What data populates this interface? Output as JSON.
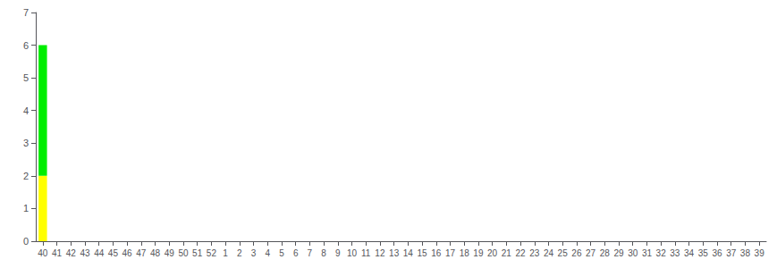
{
  "chart_data": {
    "type": "bar",
    "stacked": true,
    "categories": [
      "40",
      "41",
      "42",
      "43",
      "44",
      "45",
      "46",
      "47",
      "48",
      "49",
      "50",
      "51",
      "52",
      "1",
      "2",
      "3",
      "4",
      "5",
      "6",
      "7",
      "8",
      "9",
      "10",
      "11",
      "12",
      "13",
      "14",
      "15",
      "16",
      "17",
      "18",
      "19",
      "20",
      "21",
      "22",
      "23",
      "24",
      "25",
      "26",
      "27",
      "28",
      "29",
      "30",
      "31",
      "32",
      "33",
      "34",
      "35",
      "36",
      "37",
      "38",
      "39"
    ],
    "series": [
      {
        "color": "#ffff00",
        "values": [
          2,
          0,
          0,
          0,
          0,
          0,
          0,
          0,
          0,
          0,
          0,
          0,
          0,
          0,
          0,
          0,
          0,
          0,
          0,
          0,
          0,
          0,
          0,
          0,
          0,
          0,
          0,
          0,
          0,
          0,
          0,
          0,
          0,
          0,
          0,
          0,
          0,
          0,
          0,
          0,
          0,
          0,
          0,
          0,
          0,
          0,
          0,
          0,
          0,
          0,
          0,
          0
        ]
      },
      {
        "color": "#00ee00",
        "values": [
          4,
          0,
          0,
          0,
          0,
          0,
          0,
          0,
          0,
          0,
          0,
          0,
          0,
          0,
          0,
          0,
          0,
          0,
          0,
          0,
          0,
          0,
          0,
          0,
          0,
          0,
          0,
          0,
          0,
          0,
          0,
          0,
          0,
          0,
          0,
          0,
          0,
          0,
          0,
          0,
          0,
          0,
          0,
          0,
          0,
          0,
          0,
          0,
          0,
          0,
          0,
          0
        ]
      }
    ],
    "ylim": [
      0,
      7
    ],
    "yticks": [
      0,
      1,
      2,
      3,
      4,
      5,
      6,
      7
    ],
    "grid": false
  }
}
